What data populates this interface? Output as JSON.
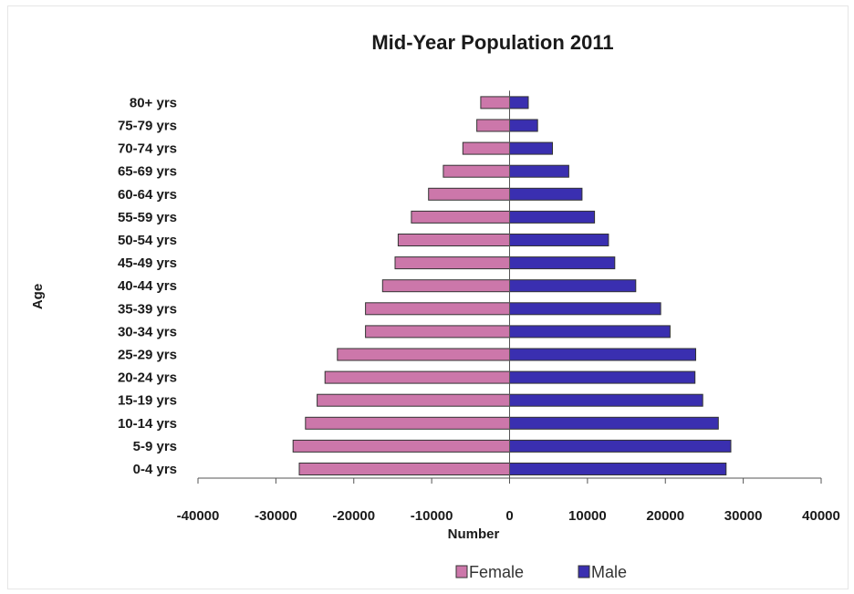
{
  "chart_data": {
    "type": "bar",
    "orientation": "horizontal",
    "title": "Mid-Year Population 2011",
    "xlabel": "Number",
    "ylabel": "Age",
    "xlim": [
      -40000,
      40000
    ],
    "xticks": [
      "-40000",
      "-30000",
      "-20000",
      "-10000",
      "0",
      "10000",
      "20000",
      "30000",
      "40000"
    ],
    "xtick_values": [
      -40000,
      -30000,
      -20000,
      -10000,
      0,
      10000,
      20000,
      30000,
      40000
    ],
    "categories": [
      "0-4 yrs",
      "5-9 yrs",
      "10-14 yrs",
      "15-19 yrs",
      "20-24 yrs",
      "25-29 yrs",
      "30-34 yrs",
      "35-39 yrs",
      "40-44 yrs",
      "45-49 yrs",
      "50-54 yrs",
      "55-59 yrs",
      "60-64 yrs",
      "65-69 yrs",
      "70-74 yrs",
      "75-79 yrs",
      "80+ yrs"
    ],
    "series": [
      {
        "name": "Female",
        "color": "#cc77aa",
        "values": [
          -27000,
          -27800,
          -26200,
          -24700,
          -23700,
          -22100,
          -18500,
          -18500,
          -16300,
          -14700,
          -14300,
          -12600,
          -10400,
          -8500,
          -6000,
          -4200,
          -3700
        ]
      },
      {
        "name": "Male",
        "color": "#3a2fb0",
        "values": [
          27800,
          28400,
          26800,
          24800,
          23800,
          23900,
          20600,
          19400,
          16200,
          13500,
          12700,
          10900,
          9300,
          7600,
          5500,
          3600,
          2400
        ]
      }
    ],
    "grid": false,
    "legend_position": "bottom"
  }
}
